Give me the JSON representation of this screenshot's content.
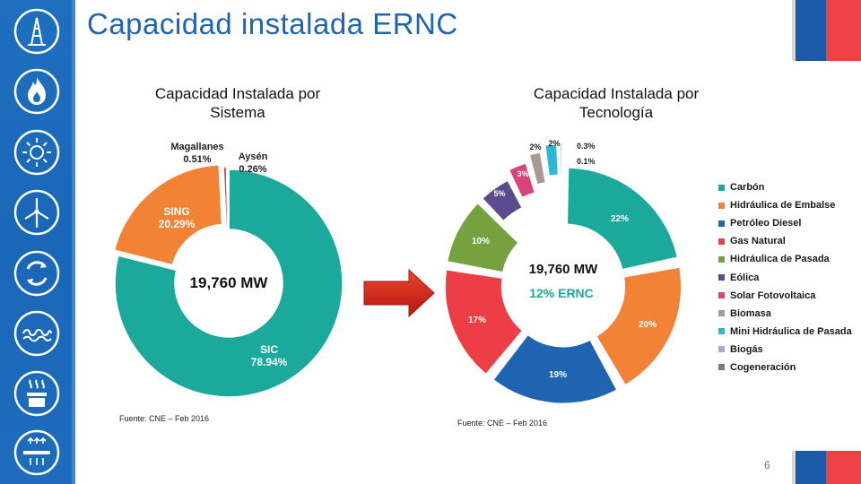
{
  "slide": {
    "title": "Capacidad instalada ERNC",
    "page_number": "6",
    "left_subtitle": "Capacidad Instalada por Sistema",
    "right_subtitle": "Capacidad Instalada por Tecnología",
    "left_source": "Fuente: CNE – Feb 2016",
    "right_source": "Fuente: CNE – Feb 2016"
  },
  "sidebar": {
    "icons": [
      "oil-rig-icon",
      "flame-icon",
      "sun-icon",
      "wind-turbine-icon",
      "recycle-icon",
      "waves-icon",
      "geothermal-icon",
      "solar-panel-icon"
    ]
  },
  "colors": {
    "sidebar": "#1f6fbf",
    "title": "#1f64b0",
    "flag_blue": "#1a5aa8",
    "flag_red": "#ee4145",
    "arrow": "#d42b1e"
  },
  "chart_data": [
    {
      "type": "pie",
      "title": "Capacidad Instalada por Sistema",
      "center_label": "19,760 MW",
      "slices": [
        {
          "label": "SIC",
          "value": 78.94,
          "display": "78.94%",
          "color": "#1aa99a"
        },
        {
          "label": "SING",
          "value": 20.29,
          "display": "20.29%",
          "color": "#f28235"
        },
        {
          "label": "Magallanes",
          "value": 0.51,
          "display": "0.51%",
          "color": "#e03c49"
        },
        {
          "label": "Aysén",
          "value": 0.26,
          "display": "0.26%",
          "color": "#6a4d93"
        }
      ]
    },
    {
      "type": "pie",
      "title": "Capacidad Instalada por Tecnología",
      "center_label": "19,760 MW",
      "center_sublabel": "12% ERNC",
      "slices": [
        {
          "label": "Carbón",
          "value": 22,
          "display": "22%",
          "color": "#1aa99a"
        },
        {
          "label": "Hidráulica de Embalse",
          "value": 20,
          "display": "20%",
          "color": "#f28235"
        },
        {
          "label": "Petróleo Diesel",
          "value": 19,
          "display": "19%",
          "color": "#1f64b0"
        },
        {
          "label": "Gas Natural",
          "value": 17,
          "display": "17%",
          "color": "#ee3e45"
        },
        {
          "label": "Hidráulica de Pasada",
          "value": 10,
          "display": "10%",
          "color": "#75a23e"
        },
        {
          "label": "Eólica",
          "value": 5,
          "display": "5%",
          "color": "#5b4a8d"
        },
        {
          "label": "Solar Fotovoltaica",
          "value": 3,
          "display": "3%",
          "color": "#d84378"
        },
        {
          "label": "Biomasa",
          "value": 2,
          "display": "2%",
          "color": "#a99994"
        },
        {
          "label": "Mini Hidráulica de Pasada",
          "value": 2,
          "display": "2%",
          "color": "#2ab8d6"
        },
        {
          "label": "Biogás",
          "value": 0.3,
          "display": "0.3%",
          "color": "#a9a6d1"
        },
        {
          "label": "Cogeneración",
          "value": 0.1,
          "display": "0.1%",
          "color": "#7b7b7b"
        }
      ]
    }
  ]
}
